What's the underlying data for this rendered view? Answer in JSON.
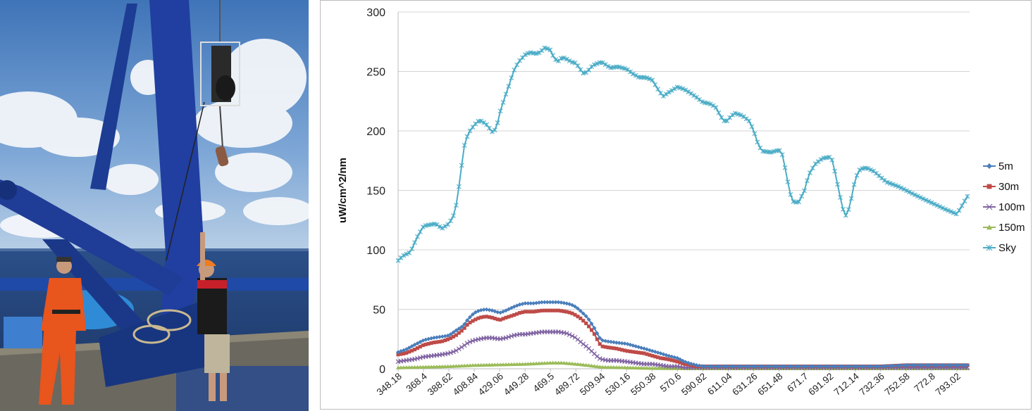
{
  "photo": {
    "icon": "photo-ship-deck-crane",
    "colors": {
      "sky": "#4f86c6",
      "sea": "#2a4f86",
      "crane": "#1c3a8f",
      "suit": "#e8551d"
    }
  },
  "chart_data": {
    "type": "line",
    "xlabel": "",
    "ylabel": "uW/cm^2/nm",
    "ylim": [
      0,
      300
    ],
    "yticks": [
      "0",
      "50",
      "100",
      "150",
      "200",
      "250",
      "300"
    ],
    "xlim": [
      348.18,
      803.1
    ],
    "xtick_labels": [
      "348.18",
      "368.4",
      "388.62",
      "408.84",
      "429.06",
      "449.28",
      "469.5",
      "489.72",
      "509.94",
      "530.16",
      "550.38",
      "570.6",
      "590.82",
      "611.04",
      "631.26",
      "651.48",
      "671.7",
      "691.92",
      "712.14",
      "732.36",
      "752.58",
      "772.8",
      "793.02"
    ],
    "grid": "horizontal",
    "legend_position": "right",
    "series": [
      {
        "name": "5m",
        "color": "#4a7ebb",
        "marker": "diamond",
        "points": [
          [
            348.18,
            14
          ],
          [
            354,
            16
          ],
          [
            361,
            20
          ],
          [
            368.4,
            24
          ],
          [
            376,
            26
          ],
          [
            383,
            27
          ],
          [
            388.62,
            28
          ],
          [
            394,
            32
          ],
          [
            400,
            36
          ],
          [
            404,
            42
          ],
          [
            408.84,
            47
          ],
          [
            413,
            49
          ],
          [
            418,
            50
          ],
          [
            423,
            49
          ],
          [
            429.06,
            47
          ],
          [
            434,
            49
          ],
          [
            440,
            52
          ],
          [
            445,
            54
          ],
          [
            449.28,
            55
          ],
          [
            456,
            55
          ],
          [
            463,
            56
          ],
          [
            469.5,
            56
          ],
          [
            476,
            56
          ],
          [
            482,
            55
          ],
          [
            486,
            54
          ],
          [
            489.72,
            52
          ],
          [
            494,
            48
          ],
          [
            499,
            43
          ],
          [
            504,
            35
          ],
          [
            508,
            27
          ],
          [
            509.94,
            24
          ],
          [
            515,
            23
          ],
          [
            522,
            22
          ],
          [
            530.16,
            21
          ],
          [
            537,
            19
          ],
          [
            544,
            17
          ],
          [
            550.38,
            15
          ],
          [
            557,
            13
          ],
          [
            563,
            11
          ],
          [
            570.6,
            9
          ],
          [
            576,
            6
          ],
          [
            582,
            4
          ],
          [
            586,
            3
          ],
          [
            590.82,
            2
          ],
          [
            611.04,
            2
          ],
          [
            631.26,
            2
          ],
          [
            651.48,
            2
          ],
          [
            671.7,
            2
          ],
          [
            691.92,
            2
          ],
          [
            712.14,
            2
          ],
          [
            732.36,
            2
          ],
          [
            752.58,
            3
          ],
          [
            772.8,
            3
          ],
          [
            793.02,
            3
          ],
          [
            803.1,
            3
          ]
        ]
      },
      {
        "name": "30m",
        "color": "#be4b48",
        "marker": "square",
        "points": [
          [
            348.18,
            12
          ],
          [
            354,
            13
          ],
          [
            361,
            16
          ],
          [
            368.4,
            20
          ],
          [
            376,
            22
          ],
          [
            383,
            23
          ],
          [
            388.62,
            25
          ],
          [
            394,
            28
          ],
          [
            400,
            33
          ],
          [
            404,
            38
          ],
          [
            408.84,
            41
          ],
          [
            413,
            43
          ],
          [
            418,
            44
          ],
          [
            423,
            43
          ],
          [
            429.06,
            41
          ],
          [
            434,
            43
          ],
          [
            440,
            45
          ],
          [
            445,
            47
          ],
          [
            449.28,
            48
          ],
          [
            456,
            48
          ],
          [
            463,
            49
          ],
          [
            469.5,
            49
          ],
          [
            476,
            49
          ],
          [
            482,
            48
          ],
          [
            486,
            47
          ],
          [
            489.72,
            45
          ],
          [
            494,
            42
          ],
          [
            499,
            37
          ],
          [
            504,
            30
          ],
          [
            508,
            22
          ],
          [
            509.94,
            19
          ],
          [
            515,
            18
          ],
          [
            522,
            17
          ],
          [
            530.16,
            15
          ],
          [
            537,
            14
          ],
          [
            544,
            13
          ],
          [
            550.38,
            11
          ],
          [
            557,
            9
          ],
          [
            563,
            8
          ],
          [
            570.6,
            6
          ],
          [
            576,
            4
          ],
          [
            582,
            3
          ],
          [
            586,
            2
          ],
          [
            590.82,
            2
          ],
          [
            611.04,
            2
          ],
          [
            631.26,
            2
          ],
          [
            651.48,
            2
          ],
          [
            671.7,
            2
          ],
          [
            691.92,
            2
          ],
          [
            712.14,
            2
          ],
          [
            732.36,
            2
          ],
          [
            752.58,
            3
          ],
          [
            772.8,
            3
          ],
          [
            793.02,
            3
          ],
          [
            803.1,
            3
          ]
        ]
      },
      {
        "name": "100m",
        "color": "#8064a2",
        "marker": "x",
        "points": [
          [
            348.18,
            6
          ],
          [
            354,
            7
          ],
          [
            361,
            8
          ],
          [
            368.4,
            10
          ],
          [
            376,
            11
          ],
          [
            383,
            12
          ],
          [
            388.62,
            13
          ],
          [
            394,
            15
          ],
          [
            400,
            19
          ],
          [
            404,
            22
          ],
          [
            408.84,
            24
          ],
          [
            413,
            25
          ],
          [
            418,
            26
          ],
          [
            423,
            26
          ],
          [
            429.06,
            25
          ],
          [
            434,
            26
          ],
          [
            440,
            28
          ],
          [
            445,
            29
          ],
          [
            449.28,
            29
          ],
          [
            456,
            30
          ],
          [
            463,
            31
          ],
          [
            469.5,
            31
          ],
          [
            476,
            31
          ],
          [
            482,
            30
          ],
          [
            486,
            28
          ],
          [
            489.72,
            26
          ],
          [
            494,
            22
          ],
          [
            499,
            18
          ],
          [
            504,
            13
          ],
          [
            508,
            9
          ],
          [
            509.94,
            8
          ],
          [
            515,
            7
          ],
          [
            522,
            7
          ],
          [
            530.16,
            6
          ],
          [
            537,
            5
          ],
          [
            544,
            4
          ],
          [
            550.38,
            4
          ],
          [
            557,
            3
          ],
          [
            563,
            2
          ],
          [
            570.6,
            2
          ],
          [
            576,
            1
          ],
          [
            590.82,
            1
          ],
          [
            611.04,
            1
          ],
          [
            631.26,
            1
          ],
          [
            651.48,
            1
          ],
          [
            671.7,
            1
          ],
          [
            691.92,
            1
          ],
          [
            712.14,
            1
          ],
          [
            732.36,
            1
          ],
          [
            752.58,
            1
          ],
          [
            772.8,
            1
          ],
          [
            793.02,
            1
          ],
          [
            803.1,
            1
          ]
        ]
      },
      {
        "name": "150m",
        "color": "#9bbb59",
        "marker": "triangle",
        "points": [
          [
            348.18,
            1
          ],
          [
            368.4,
            1.5
          ],
          [
            388.62,
            2
          ],
          [
            408.84,
            3
          ],
          [
            429.06,
            3.5
          ],
          [
            449.28,
            4
          ],
          [
            469.5,
            5
          ],
          [
            479,
            5
          ],
          [
            489.72,
            4
          ],
          [
            499,
            3
          ],
          [
            509.94,
            1.5
          ],
          [
            530.16,
            1
          ],
          [
            550.38,
            0.5
          ],
          [
            570.6,
            0.3
          ],
          [
            590.82,
            0.2
          ],
          [
            611.04,
            0.2
          ],
          [
            631.26,
            0.2
          ],
          [
            651.48,
            0.2
          ],
          [
            671.7,
            0.2
          ],
          [
            691.92,
            0.2
          ],
          [
            712.14,
            0.2
          ],
          [
            732.36,
            0.2
          ],
          [
            752.58,
            0.2
          ],
          [
            772.8,
            0.2
          ],
          [
            793.02,
            0.2
          ],
          [
            803.1,
            0.2
          ]
        ]
      },
      {
        "name": "Sky",
        "color": "#4bacc6",
        "marker": "star",
        "points": [
          [
            348.18,
            91
          ],
          [
            352,
            95
          ],
          [
            358,
            98
          ],
          [
            363,
            110
          ],
          [
            368.4,
            120
          ],
          [
            373,
            121
          ],
          [
            378,
            122
          ],
          [
            383,
            118
          ],
          [
            388.62,
            122
          ],
          [
            392,
            128
          ],
          [
            395,
            140
          ],
          [
            398,
            165
          ],
          [
            401,
            188
          ],
          [
            404,
            198
          ],
          [
            408.84,
            205
          ],
          [
            413,
            209
          ],
          [
            418,
            206
          ],
          [
            421,
            202
          ],
          [
            424,
            198
          ],
          [
            427,
            205
          ],
          [
            429.06,
            215
          ],
          [
            433,
            228
          ],
          [
            437,
            240
          ],
          [
            440,
            250
          ],
          [
            444,
            258
          ],
          [
            449.28,
            264
          ],
          [
            453,
            266
          ],
          [
            458,
            265
          ],
          [
            461,
            266
          ],
          [
            465,
            270
          ],
          [
            469.5,
            268
          ],
          [
            472,
            262
          ],
          [
            475,
            258
          ],
          [
            479,
            262
          ],
          [
            483,
            260
          ],
          [
            486,
            258
          ],
          [
            489.72,
            257
          ],
          [
            493,
            252
          ],
          [
            496,
            248
          ],
          [
            499,
            250
          ],
          [
            503,
            255
          ],
          [
            509.94,
            258
          ],
          [
            513,
            256
          ],
          [
            517,
            253
          ],
          [
            523,
            254
          ],
          [
            530.16,
            252
          ],
          [
            535,
            248
          ],
          [
            540,
            245
          ],
          [
            545,
            245
          ],
          [
            550.38,
            243
          ],
          [
            555,
            235
          ],
          [
            559,
            229
          ],
          [
            563,
            232
          ],
          [
            570.6,
            237
          ],
          [
            576,
            235
          ],
          [
            582,
            231
          ],
          [
            586,
            228
          ],
          [
            590.82,
            224
          ],
          [
            596,
            223
          ],
          [
            601,
            220
          ],
          [
            605,
            212
          ],
          [
            609,
            207
          ],
          [
            611.04,
            210
          ],
          [
            616,
            215
          ],
          [
            622,
            213
          ],
          [
            628,
            208
          ],
          [
            631.26,
            200
          ],
          [
            635,
            188
          ],
          [
            638,
            183
          ],
          [
            645,
            182
          ],
          [
            651.48,
            184
          ],
          [
            654,
            180
          ],
          [
            657,
            165
          ],
          [
            660,
            148
          ],
          [
            663,
            140
          ],
          [
            667,
            140
          ],
          [
            671.7,
            150
          ],
          [
            675,
            163
          ],
          [
            680,
            172
          ],
          [
            686,
            177
          ],
          [
            691.92,
            178
          ],
          [
            694,
            175
          ],
          [
            697,
            160
          ],
          [
            700,
            145
          ],
          [
            702,
            135
          ],
          [
            705,
            128
          ],
          [
            708,
            138
          ],
          [
            712.14,
            160
          ],
          [
            716,
            168
          ],
          [
            721,
            169
          ],
          [
            727,
            166
          ],
          [
            732.36,
            161
          ],
          [
            737,
            157
          ],
          [
            742,
            155
          ],
          [
            747,
            153
          ],
          [
            752.58,
            150
          ],
          [
            760,
            146
          ],
          [
            768,
            142
          ],
          [
            776,
            138
          ],
          [
            784,
            134
          ],
          [
            793.02,
            130
          ],
          [
            803.1,
            148
          ]
        ]
      }
    ]
  }
}
